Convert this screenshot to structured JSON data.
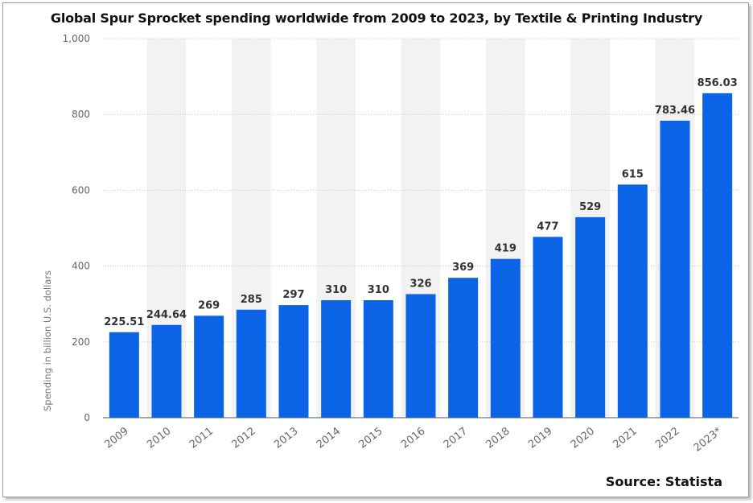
{
  "chart_data": {
    "type": "bar",
    "title": "Global Spur Sprocket spending worldwide from 2009 to 2023, by Textile & Printing Industry",
    "xlabel": "",
    "ylabel": "Spending in billion U.S. dollars",
    "categories": [
      "2009",
      "2010",
      "2011",
      "2012",
      "2013",
      "2014",
      "2015",
      "2016",
      "2017",
      "2018",
      "2019",
      "2020",
      "2021",
      "2022",
      "2023*"
    ],
    "values": [
      225.51,
      244.64,
      269,
      285,
      297,
      310,
      310,
      326,
      369,
      419,
      477,
      529,
      615,
      783.46,
      856.03
    ],
    "data_labels": [
      "225.51",
      "244.64",
      "269",
      "285",
      "297",
      "310",
      "310",
      "326",
      "369",
      "419",
      "477",
      "529",
      "615",
      "783.46",
      "856.03"
    ],
    "ylim": [
      0,
      1000
    ],
    "yticks": [
      0,
      200,
      400,
      600,
      800,
      1000
    ],
    "ytick_labels": [
      "0",
      "200",
      "400",
      "600",
      "800",
      "1,000"
    ],
    "grid": true,
    "bar_color": "#0b63e5",
    "band_color": "#f2f2f2",
    "source": "Source: Statista"
  }
}
